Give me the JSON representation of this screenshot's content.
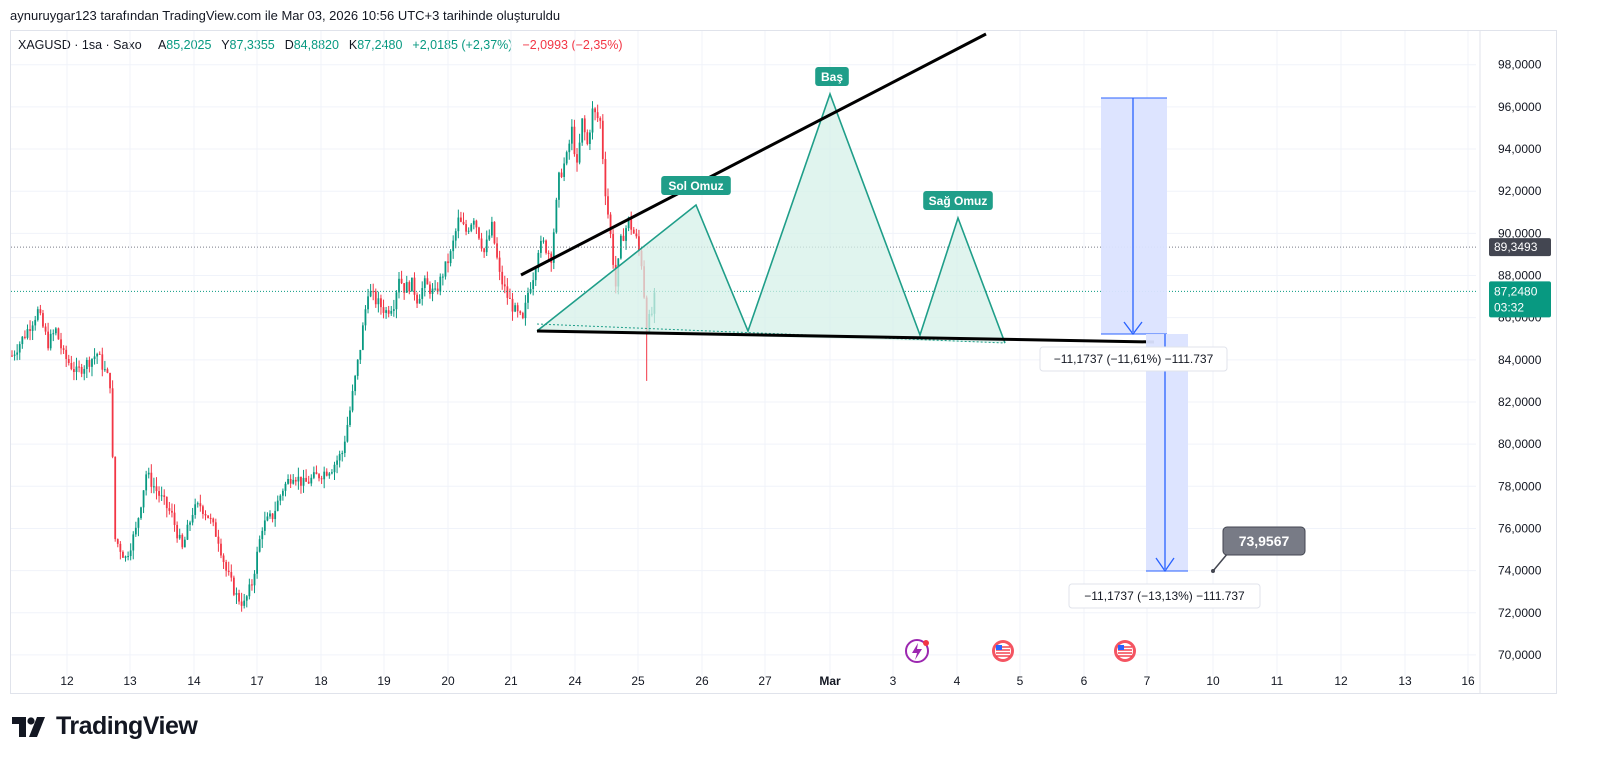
{
  "header": {
    "text": "aynuruygar123 tarafından TradingView.com ile Mar 03, 2026 10:56 UTC+3 tarihinde oluşturuldu"
  },
  "legend": {
    "symbol": "XAGUSD · 1sa · Saxo",
    "open_label": "A",
    "open": "85,2025",
    "high_label": "Y",
    "high": "87,3355",
    "low_label": "D",
    "low": "84,8820",
    "close_label": "K",
    "close": "87,2480",
    "change": "+2,0185 (+2,37%)",
    "change2": "−2,0993 (−2,35%)"
  },
  "colors": {
    "up": "#089981",
    "down": "#f23645",
    "pattern": "#1f9e89",
    "pattern_fill": "#d6f0e8",
    "projection": "#2962ff",
    "projection_fill": "#dbe3ff",
    "price_badge": "#089981",
    "level_badge": "#434651"
  },
  "brand": {
    "logo_text": "TradingView",
    "logo_icon": "tradingview-logo-icon"
  },
  "chart_data": {
    "type": "candlestick",
    "instrument": "XAGUSD",
    "timeframe": "1sa",
    "ylim": [
      69,
      99.6
    ],
    "y_ticks": [
      70,
      72,
      74,
      76,
      78,
      80,
      82,
      84,
      86,
      88,
      90,
      92,
      94,
      96,
      98
    ],
    "y_tick_labels": [
      "70,0000",
      "72,0000",
      "74,0000",
      "76,0000",
      "78,0000",
      "80,0000",
      "82,0000",
      "84,0000",
      "86,0000",
      "88,0000",
      "90,0000",
      "92,0000",
      "94,0000",
      "96,0000",
      "98,0000"
    ],
    "x_ticks": [
      "12",
      "13",
      "14",
      "17",
      "18",
      "19",
      "20",
      "21",
      "24",
      "25",
      "26",
      "27",
      "Mar",
      "3",
      "4",
      "5",
      "6",
      "7",
      "10",
      "11",
      "12",
      "13",
      "16"
    ],
    "price_path": [
      [
        0,
        84.2
      ],
      [
        5,
        85.2
      ],
      [
        10,
        86.3
      ],
      [
        14,
        84.8
      ],
      [
        17,
        85.4
      ],
      [
        20,
        84.2
      ],
      [
        25,
        83.4
      ],
      [
        33,
        84.3
      ],
      [
        38,
        82.9
      ],
      [
        40,
        75.5
      ],
      [
        44,
        74.6
      ],
      [
        48,
        75.9
      ],
      [
        52,
        78.6
      ],
      [
        57,
        77.6
      ],
      [
        62,
        76.6
      ],
      [
        66,
        75.0
      ],
      [
        70,
        76.8
      ],
      [
        73,
        77.1
      ],
      [
        76,
        76.6
      ],
      [
        80,
        75.5
      ],
      [
        83,
        74.0
      ],
      [
        87,
        72.8
      ],
      [
        90,
        72.4
      ],
      [
        93,
        73.4
      ],
      [
        97,
        76.1
      ],
      [
        101,
        76.6
      ],
      [
        105,
        77.9
      ],
      [
        109,
        78.6
      ],
      [
        113,
        78.1
      ],
      [
        117,
        78.4
      ],
      [
        120,
        78.6
      ],
      [
        124,
        78.9
      ],
      [
        128,
        79.6
      ],
      [
        131,
        81.6
      ],
      [
        135,
        84.6
      ],
      [
        138,
        87.3
      ],
      [
        141,
        86.8
      ],
      [
        145,
        86.3
      ],
      [
        148,
        86.7
      ],
      [
        150,
        88.0
      ],
      [
        152,
        87.4
      ],
      [
        155,
        87.6
      ],
      [
        157,
        86.9
      ],
      [
        160,
        87.6
      ],
      [
        164,
        87.1
      ],
      [
        167,
        88.1
      ],
      [
        170,
        89.0
      ],
      [
        173,
        90.6
      ],
      [
        176,
        90.1
      ],
      [
        179,
        90.8
      ],
      [
        183,
        89.1
      ],
      [
        186,
        90.3
      ],
      [
        189,
        88.0
      ],
      [
        192,
        87.0
      ],
      [
        195,
        86.3
      ],
      [
        198,
        85.8
      ],
      [
        200,
        87.2
      ],
      [
        202,
        88.0
      ],
      [
        204,
        89.3
      ],
      [
        206,
        89.5
      ],
      [
        209,
        88.9
      ],
      [
        212,
        92.6
      ],
      [
        215,
        93.6
      ],
      [
        217,
        94.9
      ],
      [
        219,
        93.1
      ],
      [
        221,
        95.3
      ],
      [
        223,
        94.2
      ],
      [
        225,
        95.8
      ],
      [
        228,
        95.3
      ],
      [
        230,
        92.0
      ],
      [
        232,
        89.9
      ],
      [
        234,
        87.5
      ],
      [
        236,
        89.6
      ],
      [
        239,
        90.6
      ],
      [
        242,
        89.7
      ],
      [
        244,
        88.6
      ],
      [
        246,
        85.6
      ],
      [
        248,
        86.2
      ],
      [
        249.5,
        87.25
      ]
    ],
    "candle_spread": 0.6,
    "annotations": {
      "last_price": "87,2480",
      "countdown": "03:32",
      "line_level": "89,3493",
      "pattern_labels": [
        "Sol Omuz",
        "Baş",
        "Sağ Omuz"
      ],
      "measure1": "−11,1737 (−11,61%) −111.737",
      "measure2": "−11,1737 (−13,13%) −111.737",
      "target": "73,9567"
    }
  }
}
